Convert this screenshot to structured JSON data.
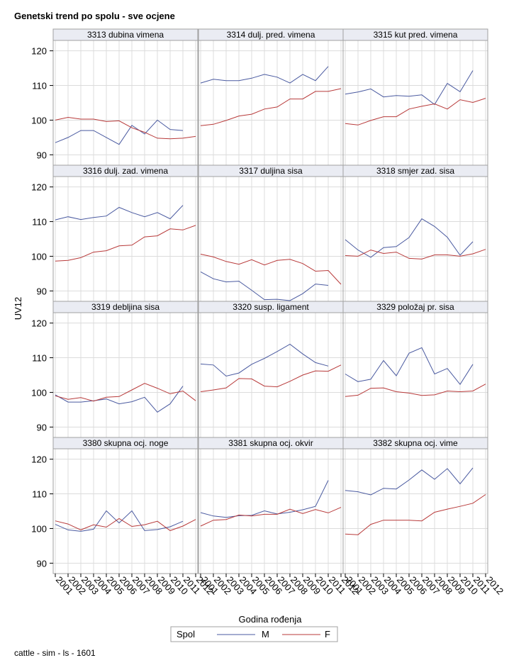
{
  "chart_data": {
    "type": "line",
    "title": "Genetski trend po spolu - sve ocjene",
    "xlabel": "Godina rođenja",
    "ylabel": "UV12",
    "footer": "cattle - sim - ls - 1601",
    "ylim": [
      87,
      123
    ],
    "yticks": [
      90,
      100,
      110,
      120
    ],
    "xticks": [
      "2001",
      "2002",
      "2003",
      "2004",
      "2005",
      "2006",
      "2007",
      "2008",
      "2009",
      "2010",
      "2011",
      "2012"
    ],
    "grid": true,
    "legend": {
      "title": "Spol",
      "position": "bottom-center",
      "entries": [
        {
          "name": "M",
          "color": "#4a5aa0"
        },
        {
          "name": "F",
          "color": "#b83a3a"
        }
      ]
    },
    "colors": {
      "M": "#4a5aa0",
      "F": "#b83a3a",
      "grid": "#dcdcdc",
      "header": "#eaecf3",
      "frame": "#a0a0a0"
    },
    "panels": [
      {
        "title": "3313 dubina vimena",
        "series": [
          {
            "name": "M",
            "values": [
              93.5,
              95,
              97,
              97,
              95,
              93,
              98.5,
              96,
              100,
              97.3,
              97,
              null
            ]
          },
          {
            "name": "F",
            "values": [
              100,
              100.8,
              100.3,
              100.3,
              99.6,
              99.8,
              97.8,
              96.5,
              94.8,
              94.6,
              94.8,
              95.3
            ]
          }
        ]
      },
      {
        "title": "3314 dulj. pred. vimena",
        "series": [
          {
            "name": "M",
            "values": [
              110.7,
              111.8,
              111.4,
              111.4,
              112.1,
              113.2,
              112.4,
              110.7,
              113.2,
              111.4,
              115.5,
              null
            ]
          },
          {
            "name": "F",
            "values": [
              98.4,
              98.8,
              99.9,
              101.2,
              101.7,
              103.2,
              103.8,
              106.1,
              106.1,
              108.3,
              108.3,
              109.1
            ]
          }
        ]
      },
      {
        "title": "3315 kut pred. vimena",
        "series": [
          {
            "name": "M",
            "values": [
              107.5,
              108.1,
              109,
              106.7,
              107.1,
              106.9,
              107.3,
              104.5,
              110.6,
              108.2,
              114.3,
              null
            ]
          },
          {
            "name": "F",
            "values": [
              99,
              98.6,
              99.9,
              101,
              101,
              103.2,
              104,
              104.7,
              103.2,
              105.9,
              105.1,
              106.3
            ]
          }
        ]
      },
      {
        "title": "3316 dulj. zad. vimena",
        "series": [
          {
            "name": "M",
            "values": [
              110.5,
              111.4,
              110.6,
              111.2,
              111.6,
              114.1,
              112.6,
              111.4,
              112.6,
              110.8,
              114.7,
              null
            ]
          },
          {
            "name": "F",
            "values": [
              98.6,
              98.8,
              99.6,
              101.2,
              101.6,
              103,
              103.2,
              105.6,
              105.9,
              107.9,
              107.6,
              108.9
            ]
          }
        ]
      },
      {
        "title": "3317 duljina sisa",
        "series": [
          {
            "name": "M",
            "values": [
              95.5,
              93.5,
              92.6,
              92.8,
              90.2,
              87.5,
              87.6,
              87.2,
              89.2,
              92,
              91.6,
              null
            ]
          },
          {
            "name": "F",
            "values": [
              100.6,
              99.8,
              98.5,
              97.7,
              99,
              97.5,
              98.8,
              99.1,
              97.9,
              95.7,
              95.9,
              91.9
            ]
          }
        ]
      },
      {
        "title": "3318 smjer zad. sisa",
        "series": [
          {
            "name": "M",
            "values": [
              104.8,
              101.8,
              99.7,
              102.5,
              102.8,
              105.4,
              110.8,
              108.6,
              105.5,
              100.3,
              104.2,
              null
            ]
          },
          {
            "name": "F",
            "values": [
              100.2,
              100,
              101.8,
              100.8,
              101.2,
              99.4,
              99.2,
              100.4,
              100.4,
              100,
              100.7,
              102
            ]
          }
        ]
      },
      {
        "title": "3319 debljina sisa",
        "series": [
          {
            "name": "M",
            "values": [
              99.3,
              97.2,
              97.2,
              97.6,
              98.1,
              96.7,
              97.3,
              98.6,
              94.3,
              96.7,
              101.8,
              null
            ]
          },
          {
            "name": "F",
            "values": [
              99,
              98,
              98.5,
              97.5,
              98.6,
              98.8,
              100.7,
              102.6,
              101.2,
              99.6,
              100.4,
              97.6
            ]
          }
        ]
      },
      {
        "title": "3320 susp. ligament",
        "series": [
          {
            "name": "M",
            "values": [
              108.2,
              107.9,
              104.7,
              105.6,
              108.1,
              109.8,
              111.8,
              113.9,
              111.1,
              108.6,
              107.6,
              null
            ]
          },
          {
            "name": "F",
            "values": [
              100.2,
              100.7,
              101.3,
              104,
              103.9,
              101.8,
              101.6,
              103.2,
              105,
              106.2,
              106.1,
              107.9
            ]
          }
        ]
      },
      {
        "title": "3329 položaj pr. sisa",
        "series": [
          {
            "name": "M",
            "values": [
              105.3,
              103.1,
              103.8,
              109.2,
              104.8,
              111.3,
              112.9,
              105.3,
              106.9,
              102.3,
              108.1,
              null
            ]
          },
          {
            "name": "F",
            "values": [
              98.8,
              99.2,
              101.2,
              101.3,
              100.2,
              99.8,
              99.1,
              99.3,
              100.4,
              100.2,
              100.4,
              102.4
            ]
          }
        ]
      },
      {
        "title": "3380 skupna ocj. noge",
        "series": [
          {
            "name": "M",
            "values": [
              101.2,
              99.6,
              99.2,
              99.8,
              105.1,
              101.6,
              105.1,
              99.4,
              99.7,
              100.5,
              102.1,
              null
            ]
          },
          {
            "name": "F",
            "values": [
              102.2,
              101.3,
              99.6,
              101.1,
              100.4,
              102.9,
              100.6,
              101.1,
              102.1,
              99.4,
              100.7,
              102.6
            ]
          }
        ]
      },
      {
        "title": "3381 skupna ocj. okvir",
        "series": [
          {
            "name": "M",
            "values": [
              104.6,
              103.6,
              103.2,
              103.7,
              103.8,
              105.1,
              104.2,
              104.7,
              105.4,
              106.4,
              113.9,
              null
            ]
          },
          {
            "name": "F",
            "values": [
              100.7,
              102.4,
              102.6,
              103.9,
              103.6,
              104.1,
              104.1,
              105.6,
              104.3,
              105.5,
              104.5,
              106.1
            ]
          }
        ]
      },
      {
        "title": "3382 skupna ocj. vime",
        "series": [
          {
            "name": "M",
            "values": [
              111,
              110.6,
              109.7,
              111.6,
              111.4,
              114,
              116.9,
              114.2,
              117.3,
              112.9,
              117.5,
              null
            ]
          },
          {
            "name": "F",
            "values": [
              98.4,
              98.2,
              101.2,
              102.4,
              102.4,
              102.4,
              102.2,
              104.7,
              105.6,
              106.4,
              107.3,
              109.8
            ]
          }
        ]
      }
    ]
  }
}
